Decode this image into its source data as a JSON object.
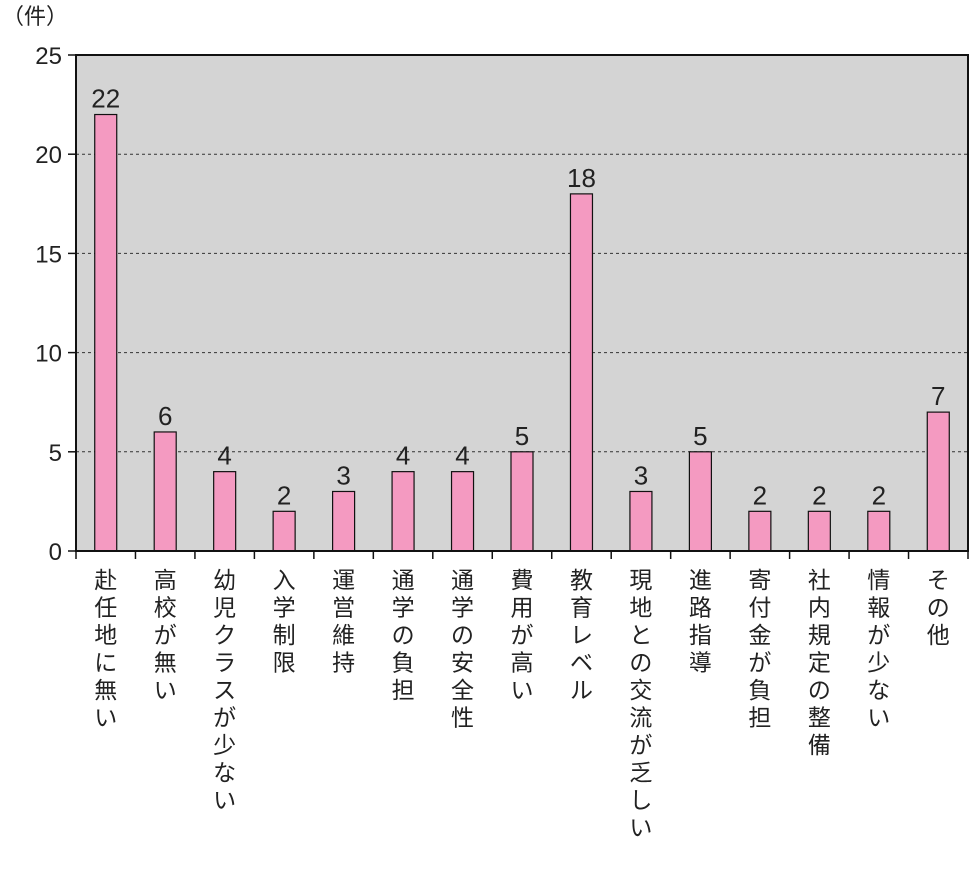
{
  "chart_data": {
    "type": "bar",
    "unit": "（件）",
    "categories": [
      "赴任地に無い",
      "高校が無い",
      "幼児クラスが少ない",
      "入学制限",
      "運営維持",
      "通学の負担",
      "通学の安全性",
      "費用が高い",
      "教育レベル",
      "現地との交流が乏しい",
      "進路指導",
      "寄付金が負担",
      "社内規定の整備",
      "情報が少ない",
      "その他"
    ],
    "values": [
      22,
      6,
      4,
      2,
      3,
      4,
      4,
      5,
      18,
      3,
      5,
      2,
      2,
      2,
      7
    ],
    "ylim": [
      0,
      25
    ],
    "yticks": [
      0,
      5,
      10,
      15,
      20,
      25
    ],
    "grid": true,
    "colors": {
      "bar": "#f49ac1",
      "plot_bg": "#d4d4d4",
      "grid": "#333333"
    }
  }
}
